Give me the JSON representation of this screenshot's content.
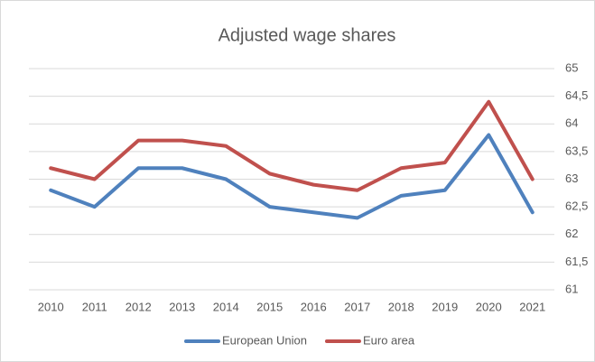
{
  "chart_data": {
    "type": "line",
    "title": "Adjusted wage shares",
    "categories": [
      "2010",
      "2011",
      "2012",
      "2013",
      "2014",
      "2015",
      "2016",
      "2017",
      "2018",
      "2019",
      "2020",
      "2021"
    ],
    "series": [
      {
        "name": "European Union",
        "color": "#4f81bd",
        "values": [
          62.8,
          62.5,
          63.2,
          63.2,
          63.0,
          62.5,
          62.4,
          62.3,
          62.7,
          62.8,
          63.8,
          62.4
        ]
      },
      {
        "name": "Euro area",
        "color": "#c0504d",
        "values": [
          63.2,
          63.0,
          63.7,
          63.7,
          63.6,
          63.1,
          62.9,
          62.8,
          63.2,
          63.3,
          64.4,
          63.0
        ]
      }
    ],
    "ylim": [
      61,
      65
    ],
    "yticks": [
      61,
      {
        "value": 61.5,
        "label": "61,5"
      },
      62,
      {
        "value": 62.5,
        "label": "62,5"
      },
      63,
      {
        "value": 63.5,
        "label": "63,5"
      },
      64,
      {
        "value": 64.5,
        "label": "64,5"
      },
      65
    ],
    "y_axis_side": "right",
    "grid": true,
    "legend": "bottom"
  }
}
